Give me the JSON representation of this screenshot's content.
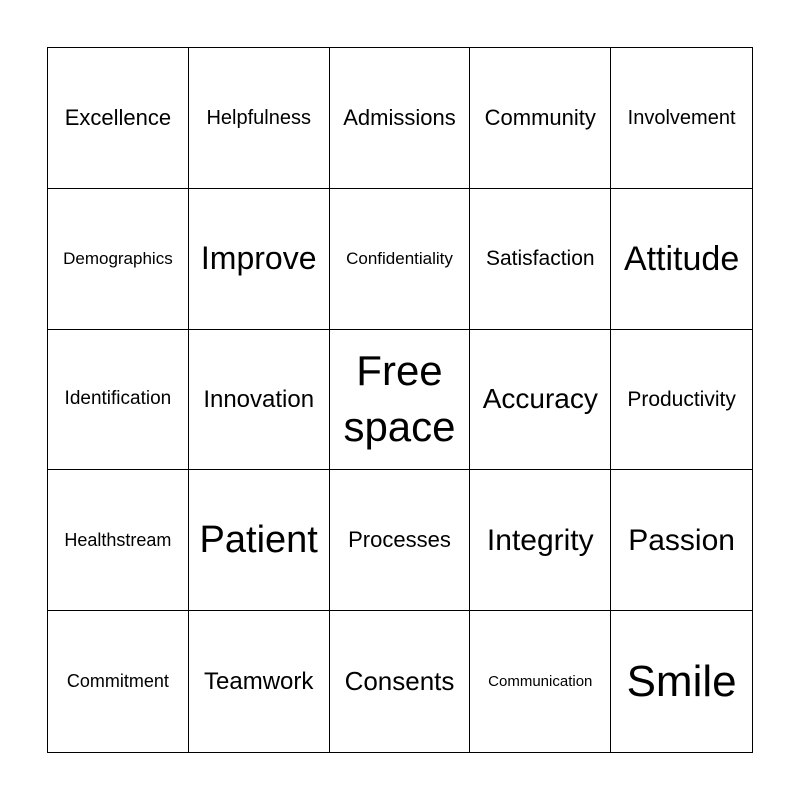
{
  "cells": [
    "Excellence",
    "Helpfulness",
    "Admissions",
    "Community",
    "Involvement",
    "Demographics",
    "Improve",
    "Confidentiality",
    "Satisfaction",
    "Attitude",
    "Identification",
    "Innovation",
    "Free space",
    "Accuracy",
    "Productivity",
    "Healthstream",
    "Patient",
    "Processes",
    "Integrity",
    "Passion",
    "Commitment",
    "Teamwork",
    "Consents",
    "Communication",
    "Smile"
  ]
}
